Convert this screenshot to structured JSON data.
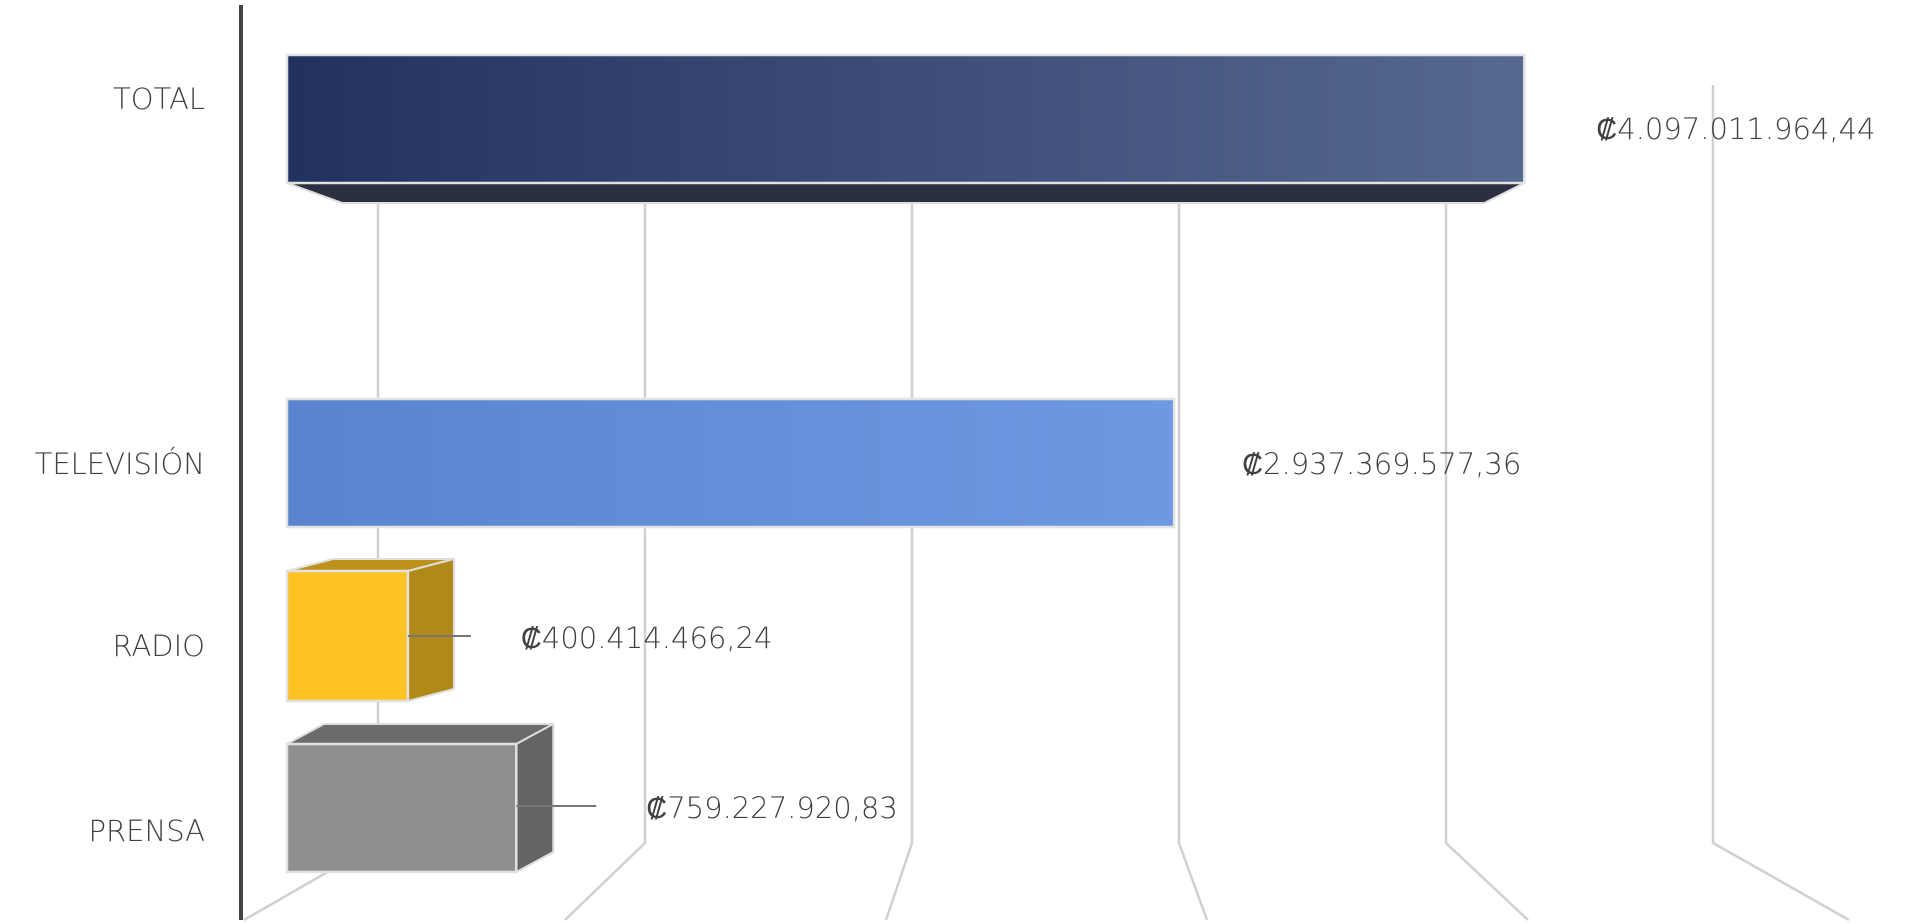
{
  "chart_data": {
    "type": "bar3d_horizontal",
    "categories": [
      "TOTAL",
      "TELEVISIÓN",
      "RADIO",
      "PRENSA"
    ],
    "values": [
      4097011964.44,
      2937369577.36,
      400414466.24,
      759227920.83
    ],
    "value_labels": [
      "₡4.097.011.964,44",
      "₡2.937.369.577,36",
      "₡400.414.466,24",
      "₡759.227.920,83"
    ],
    "colors": [
      "#2e4170",
      "#5f87d2",
      "#fdc322",
      "#8f8f8f"
    ],
    "xlim": [
      0,
      5000000000
    ],
    "xticks": [
      0,
      1000000000,
      2000000000,
      3000000000,
      4000000000,
      5000000000
    ],
    "grid": true
  }
}
